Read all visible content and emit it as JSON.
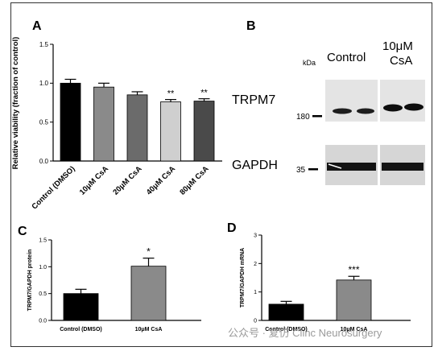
{
  "panels": {
    "a": "A",
    "b": "B",
    "c": "C",
    "d": "D"
  },
  "chart_data": [
    {
      "panel": "A",
      "type": "bar",
      "ylabel": "Relative viability (fraction of control)",
      "categories": [
        "Control (DMSO)",
        "10μM CsA",
        "20μM CsA",
        "40μM CsA",
        "80μM CsA"
      ],
      "values": [
        1.0,
        0.95,
        0.85,
        0.76,
        0.77
      ],
      "errors": [
        0.05,
        0.05,
        0.04,
        0.03,
        0.03
      ],
      "colors": [
        "#000000",
        "#8a8a8a",
        "#6b6b6b",
        "#cfcfcf",
        "#4a4a4a"
      ],
      "annotations": [
        "",
        "",
        "",
        "**",
        "**"
      ],
      "ylim": [
        0,
        1.5
      ],
      "yticks": [
        "0.0",
        "0.5",
        "1.0",
        "1.5"
      ]
    },
    {
      "panel": "C",
      "type": "bar",
      "ylabel": "TRPM7/GAPDH protein",
      "categories": [
        "Control (DMSO)",
        "10μM CsA"
      ],
      "values": [
        0.5,
        1.01
      ],
      "errors": [
        0.08,
        0.15
      ],
      "colors": [
        "#000000",
        "#8a8a8a"
      ],
      "annotations": [
        "",
        "*"
      ],
      "ylim": [
        0,
        1.5
      ],
      "yticks": [
        "0.0",
        "0.5",
        "1.0",
        "1.5"
      ]
    },
    {
      "panel": "D",
      "type": "bar",
      "ylabel": "TRPM7/GAPDH mRNA",
      "categories": [
        "Control (DMSO)",
        "10μM CsA"
      ],
      "values": [
        0.57,
        1.42
      ],
      "errors": [
        0.1,
        0.13
      ],
      "colors": [
        "#000000",
        "#8a8a8a"
      ],
      "annotations": [
        "",
        "***"
      ],
      "ylim": [
        0,
        3
      ],
      "yticks": [
        "0",
        "1",
        "2",
        "3"
      ]
    }
  ],
  "blot": {
    "kda_label": "kDa",
    "col_control": "Control",
    "col_csa_line1": "10μM",
    "col_csa_line2": "CsA",
    "trpm7_label": "TRPM7",
    "gapdh_label": "GAPDH",
    "marker_180": "180",
    "marker_35": "35"
  },
  "watermark": "公众号 · 复仿 Clinc Neurosurgery"
}
